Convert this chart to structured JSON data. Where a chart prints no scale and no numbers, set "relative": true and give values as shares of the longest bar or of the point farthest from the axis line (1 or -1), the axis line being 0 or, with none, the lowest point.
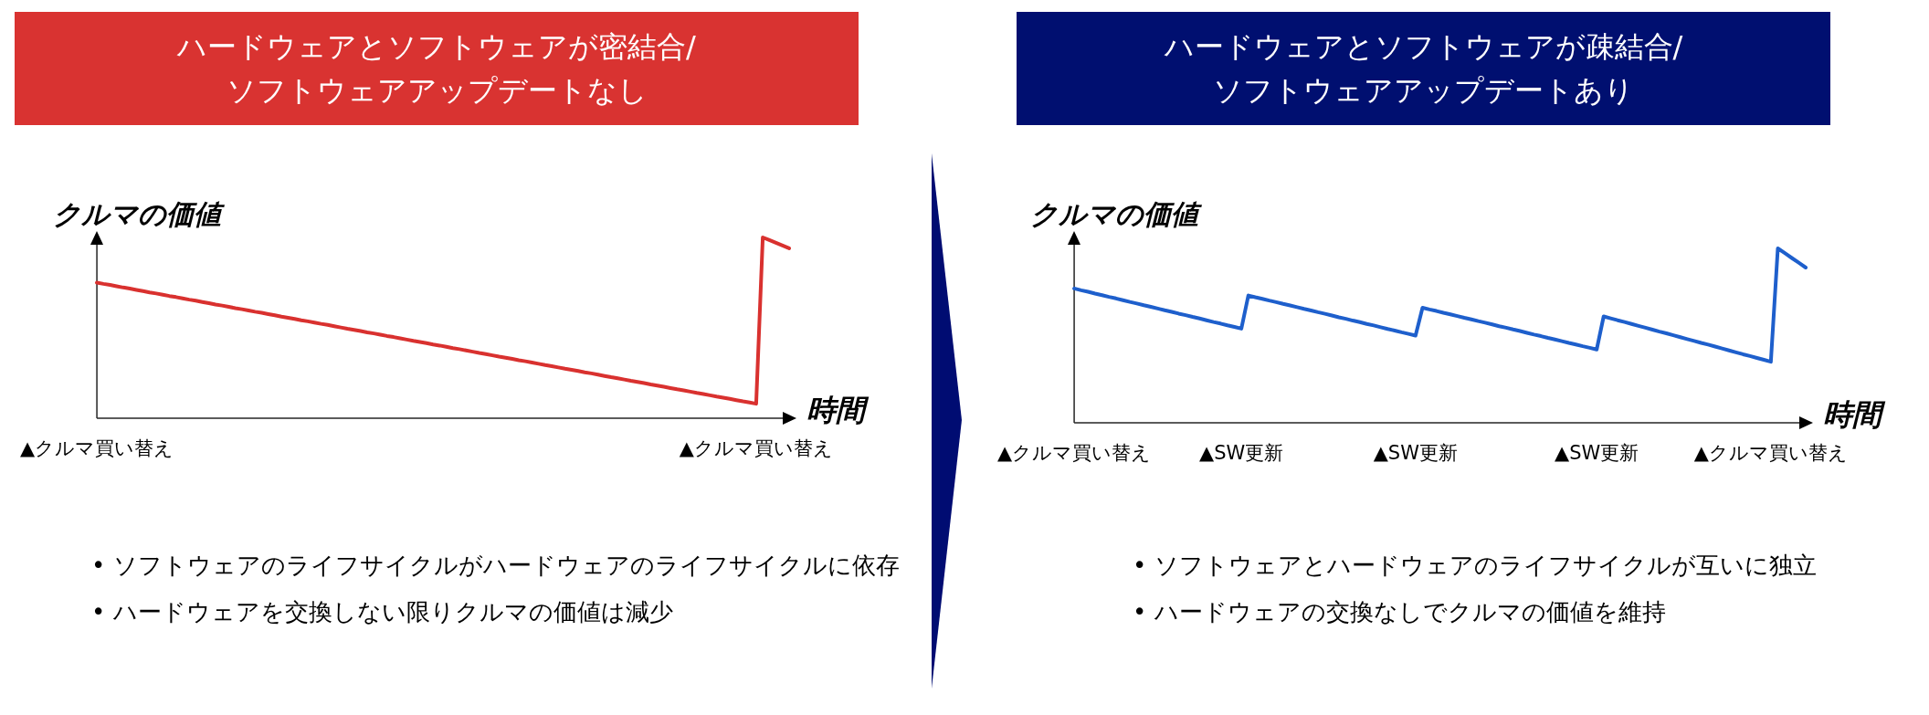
{
  "chart_data": [
    {
      "type": "line",
      "title": "ハードウェアとソフトウェアが密結合/\nソフトウェアアップデートなし",
      "xlabel": "時間",
      "ylabel": "クルマの価値",
      "relative": true,
      "categories": [
        "▲クルマ買い替え",
        null,
        null,
        null,
        null,
        null,
        null,
        null,
        null,
        null,
        null,
        null,
        null,
        null,
        null,
        null,
        null,
        null,
        null,
        null,
        null,
        null,
        null,
        null,
        null,
        null,
        null,
        null,
        null,
        null,
        null,
        null,
        null,
        null,
        null,
        null,
        null,
        null,
        null,
        null,
        null,
        null,
        null,
        null,
        null,
        null,
        null,
        null,
        null,
        null,
        null,
        null,
        null,
        null,
        null,
        null,
        null,
        null,
        null,
        null,
        null,
        null,
        null,
        null,
        null,
        null,
        null,
        null,
        null,
        null,
        null,
        null,
        null,
        null,
        null,
        null,
        null,
        null,
        null,
        null,
        null,
        null,
        null,
        null,
        null,
        null,
        null,
        null,
        null,
        null,
        null,
        null,
        null,
        null,
        null,
        null,
        null,
        null,
        null,
        null,
        "▲クルマ買い替え",
        null,
        null,
        null,
        null,
        null
      ],
      "values": [
        0.75,
        0.743,
        0.737,
        0.73,
        0.723,
        0.717,
        0.71,
        0.703,
        0.696,
        0.69,
        0.683,
        0.676,
        0.67,
        0.663,
        0.656,
        0.65,
        0.643,
        0.636,
        0.629,
        0.623,
        0.616,
        0.609,
        0.603,
        0.596,
        0.589,
        0.583,
        0.576,
        0.569,
        0.562,
        0.556,
        0.549,
        0.542,
        0.536,
        0.529,
        0.522,
        0.516,
        0.509,
        0.502,
        0.495,
        0.489,
        0.482,
        0.475,
        0.469,
        0.462,
        0.455,
        0.449,
        0.442,
        0.435,
        0.428,
        0.422,
        0.415,
        0.408,
        0.402,
        0.395,
        0.388,
        0.382,
        0.375,
        0.368,
        0.361,
        0.355,
        0.348,
        0.341,
        0.335,
        0.328,
        0.321,
        0.315,
        0.308,
        0.301,
        0.294,
        0.288,
        0.281,
        0.274,
        0.268,
        0.261,
        0.254,
        0.248,
        0.241,
        0.234,
        0.227,
        0.221,
        0.214,
        0.207,
        0.201,
        0.194,
        0.187,
        0.181,
        0.174,
        0.167,
        0.16,
        0.154,
        0.147,
        0.14,
        0.134,
        0.127,
        0.12,
        0.114,
        0.107,
        0.1,
        0.093,
        0.087,
        0.08,
        1,
        0.985,
        0.97,
        0.955,
        0.94
      ],
      "color": "#d9312f",
      "annotations": [
        "• ソフトウェアのライフサイクルがハードウェアのライフサイクルに依存",
        "• ハードウェアを交換しない限りクルマの価値は減少"
      ]
    },
    {
      "type": "line",
      "title": "ハードウェアとソフトウェアが疎結合/\nソフトウェアアップデートあり",
      "xlabel": "時間",
      "ylabel": "クルマの価値",
      "relative": true,
      "categories": [
        "▲クルマ買い替え",
        null,
        null,
        null,
        null,
        null,
        null,
        null,
        null,
        null,
        null,
        null,
        null,
        null,
        null,
        null,
        null,
        null,
        null,
        null,
        null,
        null,
        null,
        null,
        "▲SW更新",
        null,
        null,
        null,
        null,
        null,
        null,
        null,
        null,
        null,
        null,
        null,
        null,
        null,
        null,
        null,
        null,
        null,
        null,
        null,
        null,
        null,
        null,
        null,
        null,
        "▲SW更新",
        null,
        null,
        null,
        null,
        null,
        null,
        null,
        null,
        null,
        null,
        null,
        null,
        null,
        null,
        null,
        null,
        null,
        null,
        null,
        null,
        null,
        null,
        null,
        null,
        null,
        "▲SW更新",
        null,
        null,
        null,
        null,
        null,
        null,
        null,
        null,
        null,
        null,
        null,
        null,
        null,
        null,
        null,
        null,
        null,
        null,
        null,
        null,
        null,
        null,
        null,
        null,
        "▲クルマ買い替え",
        null,
        null,
        null,
        null,
        null
      ],
      "values": [
        0.77,
        0.76,
        0.751,
        0.741,
        0.732,
        0.722,
        0.713,
        0.703,
        0.693,
        0.684,
        0.674,
        0.665,
        0.655,
        0.645,
        0.636,
        0.626,
        0.617,
        0.607,
        0.598,
        0.588,
        0.578,
        0.569,
        0.559,
        0.55,
        0.54,
        0.73,
        0.72,
        0.711,
        0.701,
        0.692,
        0.682,
        0.673,
        0.663,
        0.653,
        0.644,
        0.634,
        0.625,
        0.615,
        0.605,
        0.596,
        0.586,
        0.577,
        0.567,
        0.558,
        0.548,
        0.538,
        0.529,
        0.519,
        0.51,
        0.5,
        0.66,
        0.65,
        0.641,
        0.631,
        0.622,
        0.612,
        0.602,
        0.593,
        0.583,
        0.574,
        0.564,
        0.554,
        0.545,
        0.535,
        0.526,
        0.516,
        0.506,
        0.497,
        0.487,
        0.478,
        0.468,
        0.458,
        0.449,
        0.439,
        0.43,
        0.42,
        0.61,
        0.599,
        0.588,
        0.578,
        0.567,
        0.556,
        0.545,
        0.534,
        0.523,
        0.513,
        0.502,
        0.491,
        0.48,
        0.469,
        0.458,
        0.448,
        0.437,
        0.426,
        0.415,
        0.404,
        0.393,
        0.383,
        0.372,
        0.361,
        0.35,
        1,
        0.973,
        0.945,
        0.918,
        0.89
      ],
      "color": "#1e5fcc",
      "annotations": [
        "• ソフトウェアとハードウェアのライフサイクルが互いに独立",
        "• ハードウェアの交換なしでクルマの価値を維持"
      ]
    }
  ]
}
